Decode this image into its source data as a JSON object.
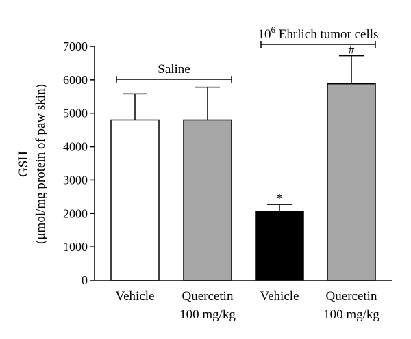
{
  "chart_data": {
    "type": "bar",
    "ylabel_line1": "GSH",
    "ylabel_line2": "(μmol/mg protein of paw skin)",
    "ylim": [
      0,
      7000
    ],
    "yticks": [
      0,
      1000,
      2000,
      3000,
      4000,
      5000,
      6000,
      7000
    ],
    "categories": [
      [
        "Vehicle"
      ],
      [
        "Quercetin",
        "100 mg/kg"
      ],
      [
        "Vehicle"
      ],
      [
        "Quercetin",
        "100 mg/kg"
      ]
    ],
    "values": [
      4800,
      4800,
      2070,
      5880
    ],
    "errors": [
      780,
      980,
      200,
      840
    ],
    "fills": [
      "#ffffff",
      "#a6a6a6",
      "#000000",
      "#a6a6a6"
    ],
    "significance": [
      "",
      "",
      "*",
      "#"
    ],
    "groups": [
      {
        "label": "Saline",
        "from": 0,
        "to": 1
      },
      {
        "label_prefix": "10",
        "label_sup": "6",
        "label_suffix": " Ehrlich tumor cells",
        "from": 2,
        "to": 3
      }
    ]
  }
}
